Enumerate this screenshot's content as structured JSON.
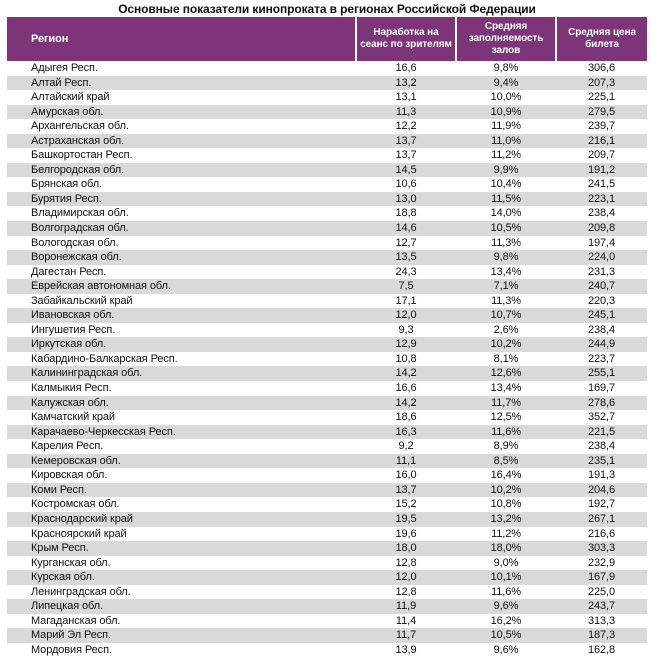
{
  "page": {
    "title": "Основные показатели кинопроката в регионах Российской Федерации"
  },
  "colors": {
    "header_bg": "#7e3478",
    "alt_row_bg": "#d9d9d9",
    "header_text": "#ffffff",
    "body_text": "#111111"
  },
  "chart_data": {
    "type": "table",
    "title": "Основные показатели кинопроката в регионах Российской Федерации",
    "columns": [
      "Регион",
      "Наработка на\nсеанс по зрителям",
      "Средняя\nзаполняемость\nзалов",
      "Средняя цена\nбилета"
    ],
    "rows": [
      [
        "Адыгея Респ.",
        "16,6",
        "9,8%",
        "306,6"
      ],
      [
        "Алтай Респ.",
        "13,2",
        "9,4%",
        "207,3"
      ],
      [
        "Алтайский край",
        "13,1",
        "10,0%",
        "225,1"
      ],
      [
        "Амурская обл.",
        "11,3",
        "10,9%",
        "279,5"
      ],
      [
        "Архангельская обл.",
        "12,2",
        "11,9%",
        "239,7"
      ],
      [
        "Астраханская обл.",
        "13,7",
        "11,0%",
        "216,1"
      ],
      [
        "Башкортостан Респ.",
        "13,7",
        "11,2%",
        "209,7"
      ],
      [
        "Белгородская обл.",
        "14,5",
        "9,9%",
        "191,2"
      ],
      [
        "Брянская обл.",
        "10,6",
        "10,4%",
        "241,5"
      ],
      [
        "Бурятия Респ.",
        "13,0",
        "11,5%",
        "223,1"
      ],
      [
        "Владимирская обл.",
        "18,8",
        "14,0%",
        "238,4"
      ],
      [
        "Волгоградская обл.",
        "14,6",
        "10,5%",
        "209,8"
      ],
      [
        "Вологодская обл.",
        "12,7",
        "11,3%",
        "197,4"
      ],
      [
        "Воронежская обл.",
        "13,5",
        "9,8%",
        "224,0"
      ],
      [
        "Дагестан Респ.",
        "24,3",
        "13,4%",
        "231,3"
      ],
      [
        "Еврейская автономная обл.",
        "7,5",
        "7,1%",
        "240,7"
      ],
      [
        "Забайкальский край",
        "17,1",
        "11,3%",
        "220,3"
      ],
      [
        "Ивановская обл.",
        "12,0",
        "10,7%",
        "245,1"
      ],
      [
        "Ингушетия Респ.",
        "9,3",
        "2,6%",
        "238,4"
      ],
      [
        "Иркутская обл.",
        "12,9",
        "10,2%",
        "244,9"
      ],
      [
        "Кабардино-Балкарская Респ.",
        "10,8",
        "8,1%",
        "223,7"
      ],
      [
        "Калининградская обл.",
        "14,2",
        "12,6%",
        "255,1"
      ],
      [
        "Калмыкия Респ.",
        "16,6",
        "13,4%",
        "169,7"
      ],
      [
        "Калужская обл.",
        "14,2",
        "11,7%",
        "278,6"
      ],
      [
        "Камчатский край",
        "18,6",
        "12,5%",
        "352,7"
      ],
      [
        "Карачаево-Черкесская Респ.",
        "16,3",
        "11,6%",
        "221,5"
      ],
      [
        "Карелия Респ.",
        "9,2",
        "8,9%",
        "238,4"
      ],
      [
        "Кемеровская обл.",
        "11,1",
        "8,5%",
        "235,1"
      ],
      [
        "Кировская обл.",
        "16,0",
        "16,4%",
        "191,3"
      ],
      [
        "Коми Респ.",
        "13,7",
        "10,2%",
        "204,6"
      ],
      [
        "Костромская обл.",
        "15,2",
        "10,8%",
        "192,7"
      ],
      [
        "Краснодарский край",
        "19,5",
        "13,2%",
        "267,1"
      ],
      [
        "Красноярский край",
        "19,6",
        "11,2%",
        "216,6"
      ],
      [
        "Крым Респ.",
        "18,0",
        "18,0%",
        "303,3"
      ],
      [
        "Курганская обл.",
        "12,8",
        "9,0%",
        "232,9"
      ],
      [
        "Курская обл.",
        "12,0",
        "10,1%",
        "167,9"
      ],
      [
        "Ленинградская обл.",
        "12,8",
        "11,6%",
        "225,0"
      ],
      [
        "Липецкая обл.",
        "11,9",
        "9,6%",
        "243,7"
      ],
      [
        "Магаданская обл.",
        "11,4",
        "16,2%",
        "313,3"
      ],
      [
        "Марий Эл Респ.",
        "11,7",
        "10,5%",
        "187,3"
      ],
      [
        "Мордовия Респ.",
        "13,9",
        "9,6%",
        "162,8"
      ]
    ]
  }
}
